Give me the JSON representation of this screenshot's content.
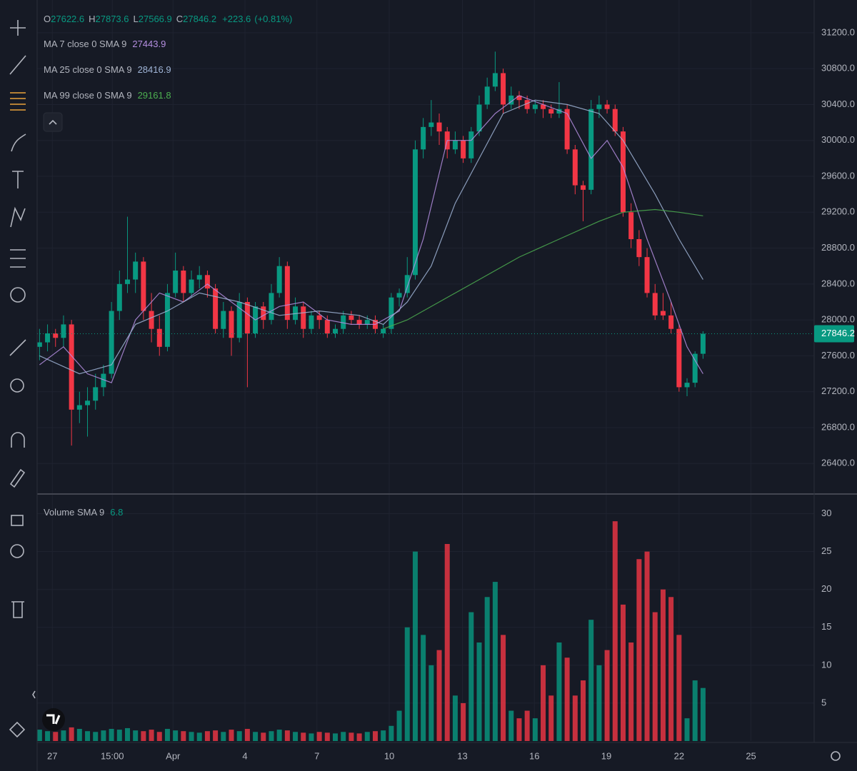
{
  "chart_data": [
    {
      "type": "candlestick",
      "ohlc_letters": [
        "O",
        "H",
        "L",
        "C"
      ],
      "change": "+223.6",
      "change_pct": "(+0.81%)",
      "up_color": "#089981",
      "down_color": "#f23645",
      "xlim": [
        -0.3,
        96.9
      ],
      "ylim": [
        26060,
        31565
      ],
      "yticks": [
        {
          "value": 26400,
          "label": "26400.0"
        },
        {
          "value": 26800,
          "label": "26800.0"
        },
        {
          "value": 27200,
          "label": "27200.0"
        },
        {
          "value": 27600,
          "label": "27600.0"
        },
        {
          "value": 28000,
          "label": "28000.0"
        },
        {
          "value": 28400,
          "label": "28400.0"
        },
        {
          "value": 28800,
          "label": "28800.0"
        },
        {
          "value": 29200,
          "label": "29200.0"
        },
        {
          "value": 29600,
          "label": "29600.0"
        },
        {
          "value": 30000,
          "label": "30000.0"
        },
        {
          "value": 30400,
          "label": "30400.0"
        },
        {
          "value": 30800,
          "label": "30800.0"
        },
        {
          "value": 31200,
          "label": "31200.0"
        }
      ],
      "candles": [
        [
          27700,
          27900,
          27550,
          27750
        ],
        [
          27750,
          27950,
          27650,
          27850
        ],
        [
          27850,
          27900,
          27700,
          27800
        ],
        [
          27800,
          28050,
          27700,
          27950
        ],
        [
          27950,
          28000,
          26600,
          27000
        ],
        [
          27000,
          27200,
          26850,
          27050
        ],
        [
          27050,
          27250,
          26700,
          27100
        ],
        [
          27100,
          27400,
          27000,
          27250
        ],
        [
          27250,
          27500,
          27150,
          27400
        ],
        [
          27400,
          28200,
          27350,
          28100
        ],
        [
          28100,
          28550,
          28000,
          28400
        ],
        [
          28400,
          29150,
          28300,
          28450
        ],
        [
          28450,
          28750,
          28300,
          28650
        ],
        [
          28650,
          28700,
          28000,
          28100
        ],
        [
          28100,
          28300,
          27750,
          27900
        ],
        [
          27900,
          28050,
          27600,
          27700
        ],
        [
          27700,
          28400,
          27650,
          28300
        ],
        [
          28300,
          28750,
          28250,
          28550
        ],
        [
          28550,
          28600,
          28200,
          28300
        ],
        [
          28300,
          28550,
          28250,
          28450
        ],
        [
          28450,
          28600,
          28350,
          28500
        ],
        [
          28500,
          28550,
          28250,
          28350
        ],
        [
          28350,
          28400,
          27850,
          27900
        ],
        [
          27900,
          28200,
          27800,
          28100
        ],
        [
          28100,
          28150,
          27600,
          27800
        ],
        [
          27800,
          28300,
          27750,
          28200
        ],
        [
          28200,
          28250,
          27250,
          27850
        ],
        [
          27850,
          28200,
          27800,
          28150
        ],
        [
          28150,
          28200,
          27900,
          28000
        ],
        [
          28000,
          28400,
          27950,
          28300
        ],
        [
          28300,
          28700,
          28250,
          28600
        ],
        [
          28600,
          28650,
          27900,
          28000
        ],
        [
          28000,
          28250,
          27950,
          28150
        ],
        [
          28150,
          28200,
          27800,
          27900
        ],
        [
          27900,
          28100,
          27850,
          28050
        ],
        [
          28050,
          28100,
          27900,
          28000
        ],
        [
          28000,
          28050,
          27800,
          27850
        ],
        [
          27850,
          27950,
          27800,
          27900
        ],
        [
          27900,
          28100,
          27850,
          28050
        ],
        [
          28050,
          28100,
          27950,
          28000
        ],
        [
          28000,
          28050,
          27900,
          27950
        ],
        [
          27950,
          28050,
          27900,
          28000
        ],
        [
          28000,
          28050,
          27850,
          27900
        ],
        [
          27850,
          27950,
          27800,
          27900
        ],
        [
          27900,
          28300,
          27850,
          28250
        ],
        [
          28250,
          28350,
          28150,
          28300
        ],
        [
          28300,
          28700,
          28250,
          28500
        ],
        [
          28500,
          30000,
          28450,
          29900
        ],
        [
          29900,
          30250,
          29800,
          30150
        ],
        [
          30150,
          30450,
          30050,
          30200
        ],
        [
          30200,
          30300,
          29950,
          30100
        ],
        [
          30100,
          30150,
          29800,
          29900
        ],
        [
          29900,
          30100,
          29850,
          30000
        ],
        [
          30000,
          30050,
          29750,
          29800
        ],
        [
          29800,
          30150,
          29750,
          30100
        ],
        [
          30100,
          30500,
          30050,
          30400
        ],
        [
          30400,
          30700,
          30350,
          30600
        ],
        [
          30600,
          30990,
          30550,
          30750
        ],
        [
          30750,
          30800,
          30300,
          30400
        ],
        [
          30400,
          30600,
          30350,
          30500
        ],
        [
          30500,
          30550,
          30350,
          30450
        ],
        [
          30450,
          30500,
          30300,
          30350
        ],
        [
          30350,
          30450,
          30300,
          30400
        ],
        [
          30400,
          30450,
          30250,
          30350
        ],
        [
          30350,
          30400,
          30250,
          30300
        ],
        [
          30300,
          30650,
          30250,
          30350
        ],
        [
          30350,
          30400,
          29850,
          29900
        ],
        [
          29900,
          29950,
          29400,
          29500
        ],
        [
          29500,
          29550,
          29100,
          29450
        ],
        [
          29450,
          30450,
          29400,
          30350
        ],
        [
          30350,
          30500,
          30250,
          30400
        ],
        [
          30400,
          30450,
          30300,
          30350
        ],
        [
          30350,
          30400,
          30050,
          30100
        ],
        [
          30100,
          30150,
          29150,
          29200
        ],
        [
          29200,
          29300,
          28800,
          28900
        ],
        [
          28900,
          29000,
          28600,
          28700
        ],
        [
          28700,
          28800,
          28250,
          28300
        ],
        [
          28300,
          28400,
          28000,
          28050
        ],
        [
          28100,
          28300,
          28000,
          28050
        ],
        [
          28050,
          28200,
          27850,
          27900
        ],
        [
          27900,
          27950,
          27200,
          27250
        ],
        [
          27250,
          27350,
          27150,
          27300
        ],
        [
          27300,
          27650,
          27250,
          27622.6
        ],
        [
          27622.6,
          27873.6,
          27566.9,
          27846.2
        ]
      ],
      "lines": [
        {
          "name": "MA 7 close 0 SMA 9",
          "color": "#b48ee0",
          "last_value": 27443.9,
          "x": [
            0,
            3,
            6,
            9,
            12,
            15,
            18,
            21,
            24,
            27,
            30,
            33,
            36,
            39,
            42,
            45,
            48,
            51,
            54,
            57,
            60,
            63,
            66,
            69,
            71,
            73,
            76,
            79,
            81,
            83
          ],
          "values": [
            27500,
            27700,
            27400,
            27300,
            28000,
            28300,
            28200,
            28400,
            28200,
            28000,
            28150,
            28200,
            28000,
            27950,
            27950,
            28100,
            28900,
            30000,
            30000,
            30300,
            30500,
            30400,
            30300,
            29800,
            30000,
            29700,
            28900,
            28200,
            27700,
            27400
          ]
        },
        {
          "name": "MA 25 close 0 SMA 9",
          "color": "#9fb4d6",
          "last_value": 28416.9,
          "x": [
            0,
            5,
            9,
            12,
            16,
            20,
            25,
            30,
            35,
            40,
            43,
            46,
            49,
            52,
            55,
            58,
            62,
            66,
            70,
            73,
            77,
            80,
            83
          ],
          "values": [
            27600,
            27400,
            27500,
            27950,
            28100,
            28300,
            28200,
            28050,
            28100,
            28050,
            27950,
            28200,
            28600,
            29300,
            29800,
            30300,
            30450,
            30400,
            30300,
            30000,
            29400,
            28900,
            28450
          ]
        },
        {
          "name": "MA 99 close 0 SMA 9",
          "color": "#4caf50",
          "last_value": 29161.8,
          "x": [
            43,
            46,
            50,
            55,
            60,
            65,
            70,
            73,
            77,
            80,
            83
          ],
          "values": [
            27900,
            28000,
            28200,
            28450,
            28700,
            28900,
            29100,
            29200,
            29230,
            29200,
            29160
          ]
        }
      ]
    },
    {
      "type": "bar",
      "sma_label": "Volume SMA 9",
      "sma_value": 6.8,
      "sma_color": "#089981",
      "up_color": "#089981",
      "down_color": "#f23645",
      "xlim": [
        -0.3,
        96.9
      ],
      "ylim": [
        0,
        32.5
      ],
      "yticks": [
        5,
        10,
        15,
        20,
        25,
        30
      ],
      "xticks": [
        {
          "value": 1.6,
          "label": "27"
        },
        {
          "value": 9.1,
          "label": "15:00"
        },
        {
          "value": 16.7,
          "label": "Apr"
        },
        {
          "value": 25.7,
          "label": "4"
        },
        {
          "value": 34.7,
          "label": "7"
        },
        {
          "value": 43.75,
          "label": "10"
        },
        {
          "value": 52.9,
          "label": "13"
        },
        {
          "value": 61.9,
          "label": "16"
        },
        {
          "value": 70.9,
          "label": "19"
        },
        {
          "value": 80,
          "label": "22"
        },
        {
          "value": 89,
          "label": "25"
        }
      ],
      "values": [
        1.5,
        1.3,
        1.2,
        1.4,
        1.8,
        1.6,
        1.3,
        1.2,
        1.4,
        1.6,
        1.5,
        1.7,
        1.4,
        1.3,
        1.5,
        1.2,
        1.6,
        1.4,
        1.3,
        1.2,
        1.1,
        1.3,
        1.4,
        1.2,
        1.5,
        1.3,
        1.6,
        1.2,
        1.1,
        1.3,
        1.5,
        1.4,
        1.2,
        1.1,
        1.0,
        1.2,
        1.1,
        1.0,
        1.2,
        1.1,
        1.0,
        1.2,
        1.3,
        1.4,
        2,
        4,
        15,
        25,
        14,
        10,
        12,
        26,
        6,
        5,
        17,
        13,
        19,
        21,
        14,
        4,
        3,
        4,
        3,
        10,
        6,
        13,
        11,
        6,
        8,
        16,
        10,
        12,
        29,
        18,
        13,
        24,
        25,
        17,
        20,
        19,
        14,
        3,
        8,
        7
      ]
    }
  ]
}
